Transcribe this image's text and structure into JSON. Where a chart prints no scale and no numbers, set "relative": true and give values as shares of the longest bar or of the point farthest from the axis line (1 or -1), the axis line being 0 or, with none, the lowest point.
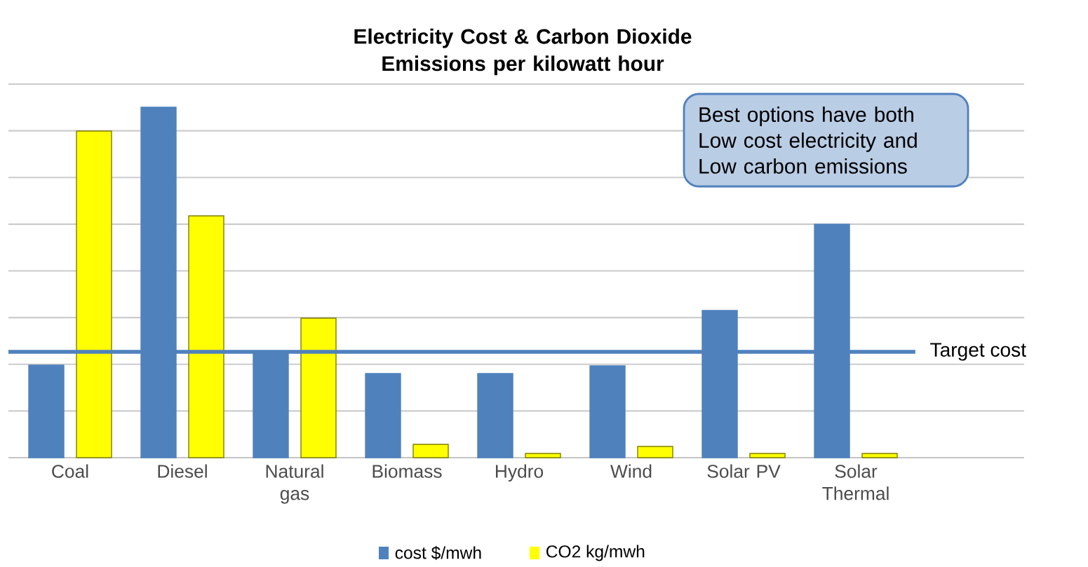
{
  "chart_data": {
    "type": "bar",
    "title": "Electricity Cost & Carbon Dioxide Emissions per kilowatt hour",
    "relative": true,
    "categories": [
      "Coal",
      "Diesel",
      "Natural gas",
      "Biomass",
      "Hydro",
      "Wind",
      "Solar PV",
      "Solar Thermal"
    ],
    "series": [
      {
        "name": "cost $/mwh",
        "color": "#4f81bd",
        "values": [
          0.264,
          1.0,
          0.3,
          0.24,
          0.24,
          0.262,
          0.42,
          0.666
        ]
      },
      {
        "name": "CO2 kg/mwh",
        "color": "#ffff00",
        "values": [
          0.932,
          0.69,
          0.398,
          0.038,
          0.012,
          0.032,
          0.012,
          0.012
        ]
      }
    ],
    "ref_lines": [
      {
        "axis": "y",
        "value": 0.302,
        "label": "Target cost",
        "color": "#4f81bd"
      }
    ],
    "annotations": [
      "Best options have both Low cost electricity and Low carbon emissions"
    ],
    "grid": "y",
    "legend": "bottom",
    "tick_labels": "x"
  }
}
